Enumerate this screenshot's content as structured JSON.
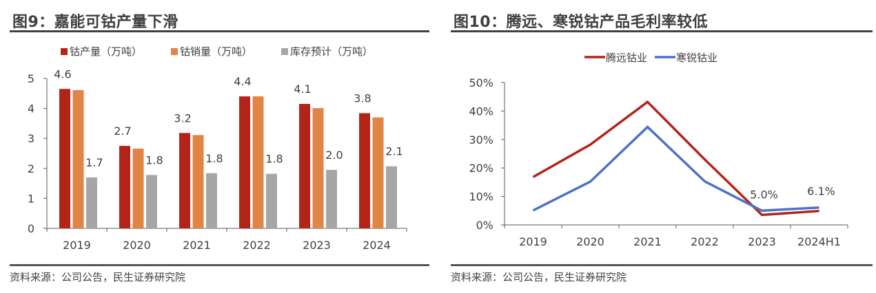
{
  "left": {
    "title": "图9：嘉能可钴产量下滑",
    "source": "资料来源：公司公告，民生证券研究院"
  },
  "right": {
    "title": "图10：腾远、寒锐钴产品毛利率较低",
    "source": "资料来源：公司公告，民生证券研究院"
  },
  "chart_data": [
    {
      "type": "bar",
      "title": "图9：嘉能可钴产量下滑",
      "categories": [
        "2019",
        "2020",
        "2021",
        "2022",
        "2023",
        "2024"
      ],
      "series": [
        {
          "name": "钴产量（万吨）",
          "color": "#b22418",
          "values": [
            4.65,
            2.75,
            3.18,
            4.4,
            4.15,
            3.84
          ]
        },
        {
          "name": "钴销量（万吨）",
          "color": "#e08545",
          "values": [
            4.61,
            2.66,
            3.11,
            4.4,
            4.01,
            3.7
          ]
        },
        {
          "name": "库存预计（万吨）",
          "color": "#a6a6a6",
          "values": [
            1.7,
            1.78,
            1.84,
            1.82,
            1.95,
            2.07
          ]
        }
      ],
      "data_labels": [
        {
          "series": 0,
          "index": 0,
          "text": "4.6"
        },
        {
          "series": 0,
          "index": 1,
          "text": "2.7"
        },
        {
          "series": 0,
          "index": 2,
          "text": "3.2"
        },
        {
          "series": 0,
          "index": 3,
          "text": "4.4"
        },
        {
          "series": 0,
          "index": 4,
          "text": "4.1"
        },
        {
          "series": 0,
          "index": 5,
          "text": "3.8"
        },
        {
          "series": 2,
          "index": 0,
          "text": "1.7"
        },
        {
          "series": 2,
          "index": 1,
          "text": "1.8"
        },
        {
          "series": 2,
          "index": 2,
          "text": "1.8"
        },
        {
          "series": 2,
          "index": 3,
          "text": "1.8"
        },
        {
          "series": 2,
          "index": 4,
          "text": "2.0"
        },
        {
          "series": 2,
          "index": 5,
          "text": "2.1"
        }
      ],
      "yticks": [
        "0",
        "1",
        "2",
        "3",
        "4",
        "5"
      ],
      "ylim": [
        0,
        5
      ],
      "xlabel": "",
      "ylabel": "",
      "grid": false,
      "legend": "top"
    },
    {
      "type": "line",
      "title": "图10：腾远、寒锐钴产品毛利率较低",
      "categories": [
        "2019",
        "2020",
        "2021",
        "2022",
        "2023",
        "2024H1"
      ],
      "series": [
        {
          "name": "腾远钴业",
          "color": "#b22418",
          "values": [
            16.8,
            28.2,
            43.2,
            23.0,
            3.5,
            4.9
          ]
        },
        {
          "name": "寒锐钴业",
          "color": "#4c72c4",
          "values": [
            5.1,
            15.2,
            34.4,
            15.3,
            5.0,
            6.1
          ]
        }
      ],
      "data_labels": [
        {
          "series": 1,
          "index": 4,
          "text": "5.0%"
        },
        {
          "series": 1,
          "index": 5,
          "text": "6.1%"
        }
      ],
      "yticks": [
        "0%",
        "10%",
        "20%",
        "30%",
        "40%",
        "50%"
      ],
      "ylim": [
        0,
        50
      ],
      "xlabel": "",
      "ylabel": "",
      "grid": false,
      "legend": "top"
    }
  ]
}
